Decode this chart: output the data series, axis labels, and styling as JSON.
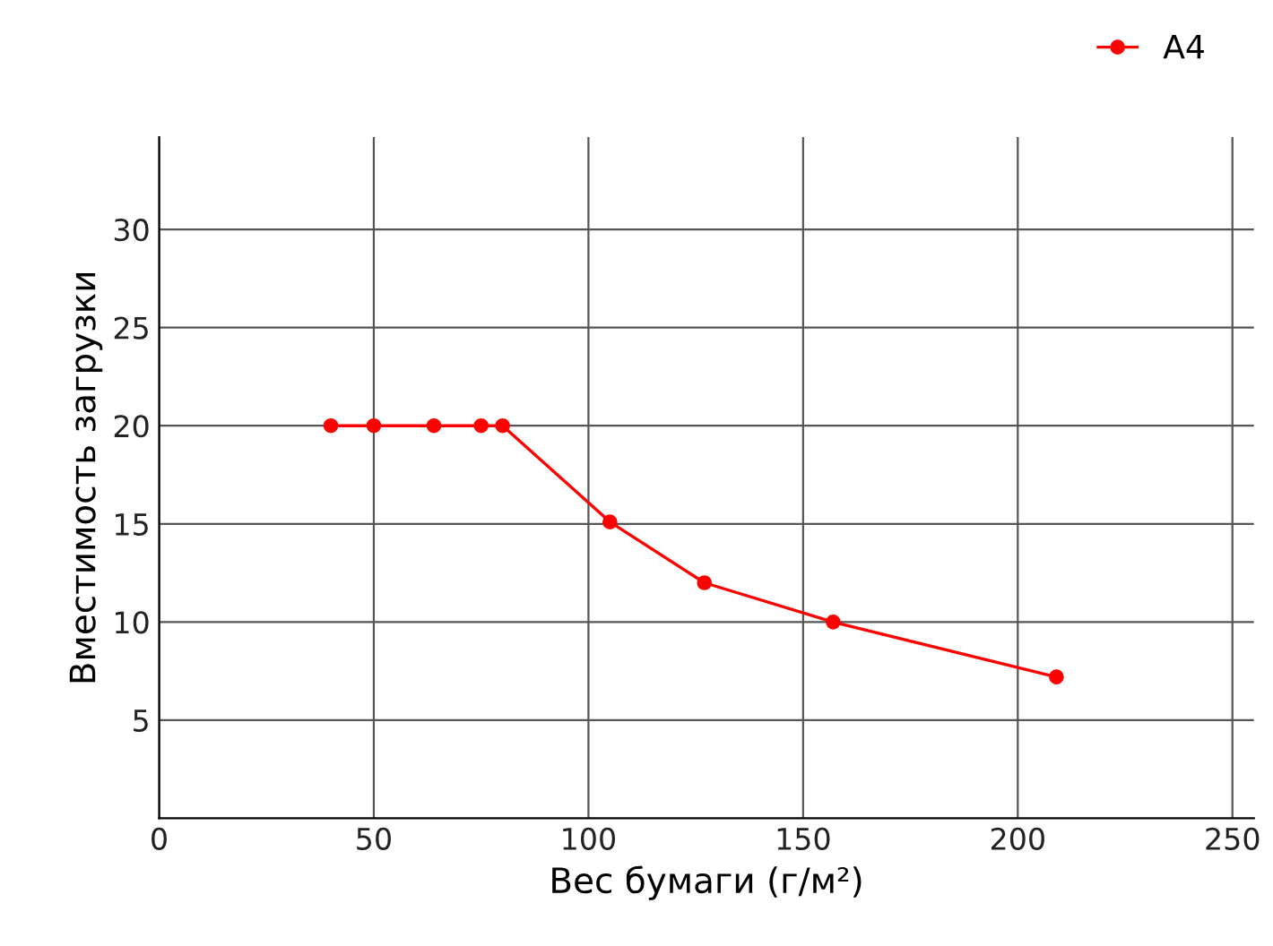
{
  "chart_data": {
    "type": "line",
    "xlabel": "Вес бумаги (г/м²)",
    "ylabel": "Вместимость загрузки",
    "xlim": [
      0,
      255
    ],
    "ylim": [
      0,
      34.7
    ],
    "xticks": [
      0,
      50,
      100,
      150,
      200,
      250
    ],
    "yticks": [
      5,
      10,
      15,
      20,
      25,
      30
    ],
    "grid": true,
    "legend": "top right",
    "marker": "circle",
    "line_style": "solid",
    "series": [
      {
        "name": "A4",
        "color": "#ff0000",
        "x": [
          40,
          50,
          64,
          75,
          80,
          105,
          127,
          157,
          209
        ],
        "values": [
          20,
          20,
          20,
          20,
          20,
          15.1,
          12,
          10,
          7.2
        ]
      }
    ]
  }
}
